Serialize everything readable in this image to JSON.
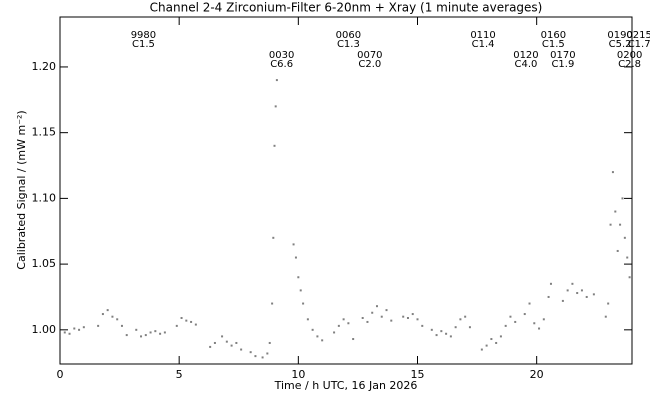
{
  "chart_data": {
    "type": "scatter",
    "title": "Channel 2-4   Zirconium-Filter   6-20nm + Xray   (1 minute averages)",
    "x_label": "Time / h UTC, 16 Jan 2026",
    "y_label": "Calibrated Signal / (mW m⁻²)",
    "color": "#808080",
    "xlim": [
      0,
      24
    ],
    "ylim": [
      0.974,
      1.238
    ],
    "xticks": [
      0,
      5,
      10,
      15,
      20
    ],
    "yticks": [
      {
        "value": 1.0,
        "label": "1.00"
      },
      {
        "value": 1.05,
        "label": "1.05"
      },
      {
        "value": 1.1,
        "label": "1.10"
      },
      {
        "value": 1.15,
        "label": "1.15"
      },
      {
        "value": 1.2,
        "label": "1.20"
      }
    ],
    "x": [
      0,
      0.2,
      0.4,
      0.6,
      0.8,
      1.0,
      1.6,
      1.8,
      2.0,
      2.2,
      2.4,
      2.6,
      2.8,
      3.2,
      3.4,
      3.6,
      3.8,
      4.0,
      4.2,
      4.4,
      4.9,
      5.1,
      5.3,
      5.5,
      5.7,
      6.3,
      6.5,
      6.8,
      7.0,
      7.2,
      7.4,
      7.6,
      8.0,
      8.2,
      8.5,
      8.7,
      8.8,
      8.9,
      8.95,
      9.0,
      9.05,
      9.1,
      9.8,
      9.9,
      10.0,
      10.1,
      10.2,
      10.4,
      10.6,
      10.8,
      11.0,
      11.5,
      11.7,
      11.9,
      12.1,
      12.3,
      12.7,
      12.9,
      13.1,
      13.3,
      13.5,
      13.7,
      13.9,
      14.4,
      14.6,
      14.8,
      15.0,
      15.2,
      15.6,
      15.8,
      16.0,
      16.2,
      16.4,
      16.6,
      16.8,
      17.0,
      17.2,
      17.7,
      17.9,
      18.1,
      18.3,
      18.5,
      18.7,
      18.9,
      19.1,
      19.5,
      19.7,
      19.9,
      20.1,
      20.3,
      20.5,
      20.6,
      21.1,
      21.3,
      21.5,
      21.7,
      21.9,
      22.1,
      22.4,
      22.9,
      23.0,
      23.1,
      23.2,
      23.3,
      23.4,
      23.5,
      23.6,
      23.7,
      23.8,
      23.9,
      24.0
    ],
    "values": [
      1.003,
      0.998,
      0.997,
      1.001,
      1.0,
      1.002,
      1.003,
      1.012,
      1.015,
      1.01,
      1.008,
      1.003,
      0.996,
      1.0,
      0.995,
      0.996,
      0.998,
      0.999,
      0.997,
      0.998,
      1.003,
      1.009,
      1.007,
      1.006,
      1.004,
      0.987,
      0.99,
      0.995,
      0.991,
      0.988,
      0.99,
      0.985,
      0.983,
      0.98,
      0.979,
      0.982,
      0.99,
      1.02,
      1.07,
      1.14,
      1.17,
      1.19,
      1.065,
      1.055,
      1.04,
      1.03,
      1.02,
      1.008,
      1.0,
      0.995,
      0.992,
      0.998,
      1.003,
      1.008,
      1.005,
      0.993,
      1.009,
      1.006,
      1.013,
      1.018,
      1.01,
      1.015,
      1.007,
      1.01,
      1.009,
      1.012,
      1.008,
      1.003,
      1.0,
      0.996,
      0.999,
      0.997,
      0.995,
      1.002,
      1.008,
      1.01,
      1.002,
      0.985,
      0.988,
      0.993,
      0.99,
      0.995,
      1.003,
      1.01,
      1.006,
      1.012,
      1.02,
      1.005,
      1.001,
      1.008,
      1.025,
      1.035,
      1.022,
      1.03,
      1.035,
      1.028,
      1.03,
      1.025,
      1.027,
      1.01,
      1.02,
      1.08,
      1.12,
      1.09,
      1.06,
      1.08,
      1.1,
      1.07,
      1.055,
      1.04,
      1.035
    ],
    "annotations": {
      "upper": [
        {
          "x": 3.5,
          "text": [
            "9980",
            "C1.5"
          ]
        },
        {
          "x": 12.1,
          "text": [
            "0060",
            "C1.3"
          ]
        },
        {
          "x": 17.75,
          "text": [
            "0110",
            "C1.4"
          ]
        },
        {
          "x": 20.7,
          "text": [
            "0160",
            "C1.5"
          ]
        },
        {
          "x": 23.5,
          "text": [
            "0190",
            "C5.2"
          ]
        },
        {
          "x": 24.3,
          "text": [
            "0215",
            "C1.7"
          ]
        }
      ],
      "lower": [
        {
          "x": 9.3,
          "text": [
            "0030",
            "C6.6"
          ]
        },
        {
          "x": 13.0,
          "text": [
            "0070",
            "C2.0"
          ]
        },
        {
          "x": 19.55,
          "text": [
            "0120",
            "C4.0"
          ]
        },
        {
          "x": 21.1,
          "text": [
            "0170",
            "C1.9"
          ]
        },
        {
          "x": 23.9,
          "text": [
            "0200",
            "C2.8"
          ]
        }
      ]
    }
  }
}
